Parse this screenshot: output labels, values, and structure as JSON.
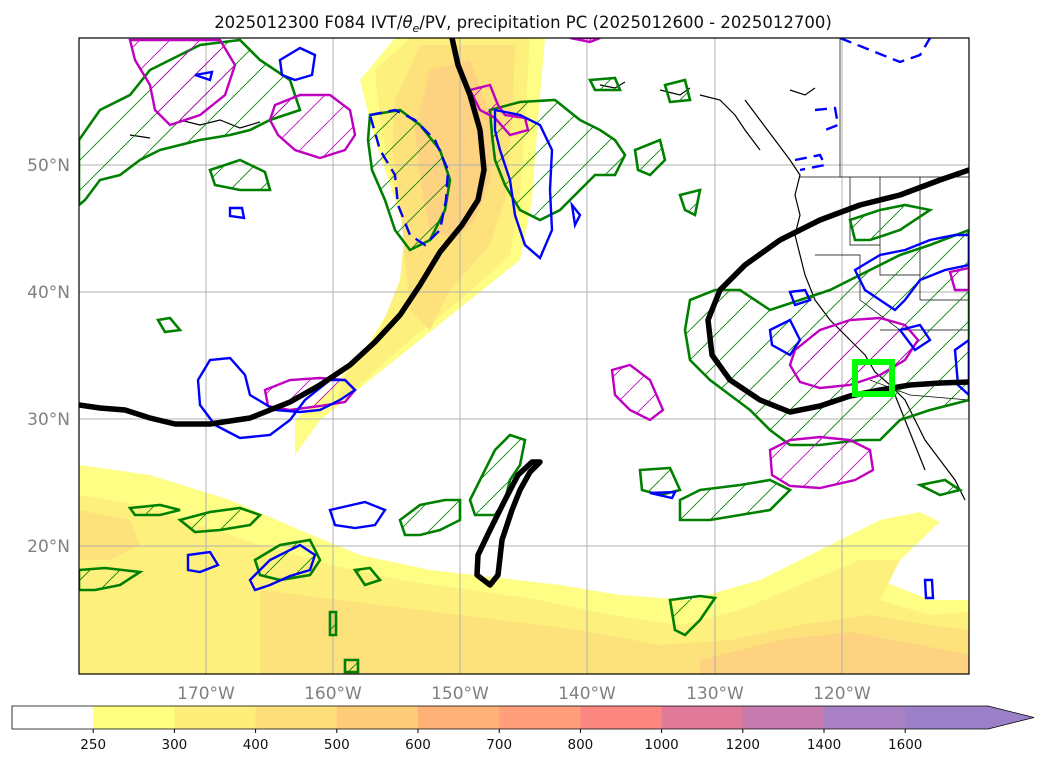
{
  "title": {
    "prefix": "2025012300 F084 IVT/",
    "theta": "θ",
    "theta_sub": "e",
    "suffix": "/PV, precipitation PC (2025012600 - 2025012700)"
  },
  "map": {
    "projection": "lat-lon",
    "grid": true,
    "lat_labels": [
      "50°N",
      "40°N",
      "30°N",
      "20°N"
    ],
    "lon_labels": [
      "170°W",
      "160°W",
      "150°W",
      "140°W",
      "130°W",
      "120°W"
    ]
  },
  "colors": {
    "ivt_250": "#fefe82",
    "ivt_300": "#fef078",
    "ivt_400": "#fee07a",
    "ivt_500": "#fdd37a",
    "pv_contour": "#000000",
    "precip_pos": "#008000",
    "theta_pos": "#c000c0",
    "theta_neg": "#0000ff",
    "target_box": "#00ff00",
    "coast": "#000000"
  },
  "colorbar": {
    "ticks": [
      "250",
      "300",
      "400",
      "500",
      "600",
      "700",
      "800",
      "1000",
      "1200",
      "1400",
      "1600"
    ],
    "colors": [
      "#ffffff",
      "#ffff80",
      "#feee7a",
      "#fede79",
      "#fecb78",
      "#feb277",
      "#fe9e7b",
      "#fc8780",
      "#e17a9a",
      "#c47aaf",
      "#aa80c4",
      "#9b80c9"
    ],
    "extend": "max"
  }
}
